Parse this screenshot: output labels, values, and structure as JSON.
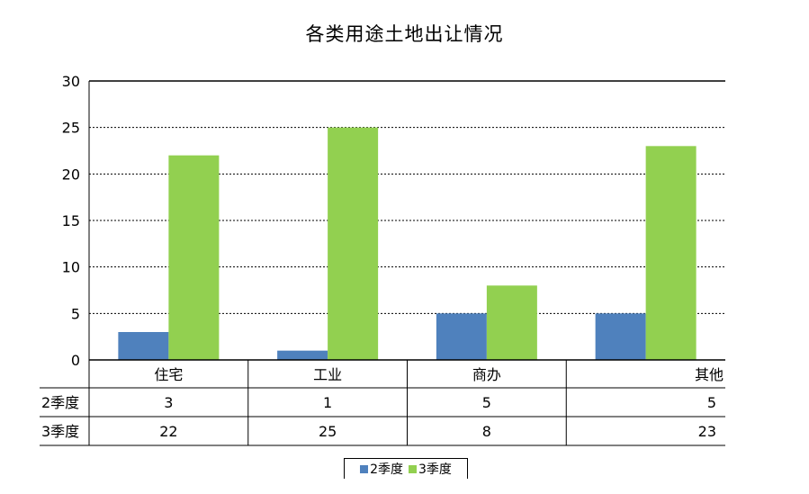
{
  "chart_data": {
    "type": "bar",
    "title": "各类用途土地出让情况",
    "categories": [
      "住宅",
      "工业",
      "商办",
      "其他"
    ],
    "series": [
      {
        "name": "2季度",
        "values": [
          3,
          1,
          5,
          5
        ],
        "color": "#4F81BD"
      },
      {
        "name": "3季度",
        "values": [
          22,
          25,
          8,
          23
        ],
        "color": "#92D050"
      }
    ],
    "ylim": [
      0,
      30
    ],
    "yticks": [
      "0",
      "5",
      "10",
      "15",
      "20",
      "25",
      "30"
    ],
    "grid": true,
    "legend": "bottom",
    "data_table": true
  }
}
